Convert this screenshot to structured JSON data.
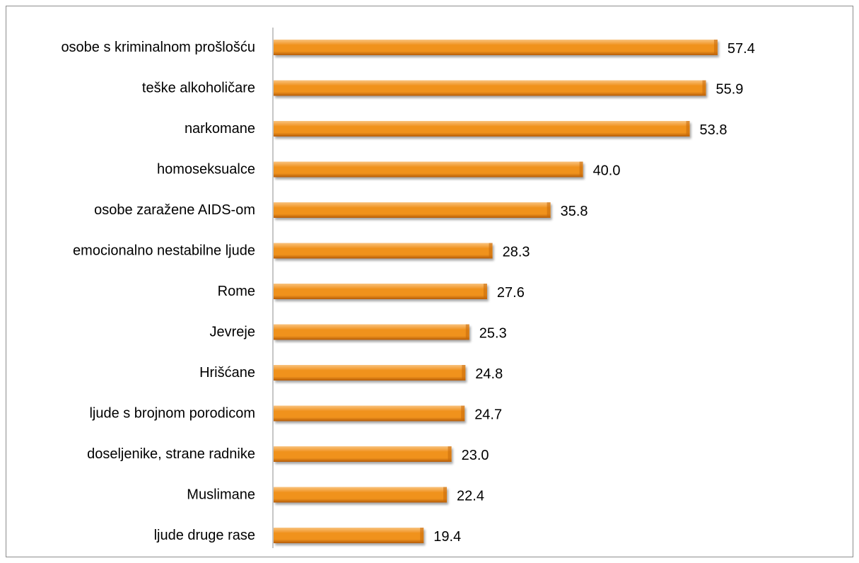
{
  "chart_data": {
    "type": "bar",
    "orientation": "horizontal",
    "categories": [
      "osobe s kriminalnom prošlošću",
      "teške alkoholičare",
      "narkomane",
      "homoseksualce",
      "osobe zaražene AIDS-om",
      "emocionalno nestabilne ljude",
      "Rome",
      "Jevreje",
      "Hrišćane",
      "ljude s brojnom porodicom",
      "doseljenike, strane radnike",
      "Muslimane",
      "ljude druge rase"
    ],
    "values": [
      57.4,
      55.9,
      53.8,
      40.0,
      35.8,
      28.3,
      27.6,
      25.3,
      24.8,
      24.7,
      23.0,
      22.4,
      19.4
    ],
    "value_labels": [
      "57.4",
      "55.9",
      "53.8",
      "40.0",
      "35.8",
      "28.3",
      "27.6",
      "25.3",
      "24.8",
      "24.7",
      "23.0",
      "22.4",
      "19.4"
    ],
    "title": "",
    "xlabel": "",
    "ylabel": "",
    "xlim": [
      0,
      66
    ],
    "grid": false,
    "legend": "none",
    "colors": {
      "bar_light": "#f9c37e",
      "bar_mid": "#f0921e",
      "bar_dark": "#b55d06",
      "bar_end": "#c7690b",
      "axis": "#8c8c8c"
    }
  }
}
